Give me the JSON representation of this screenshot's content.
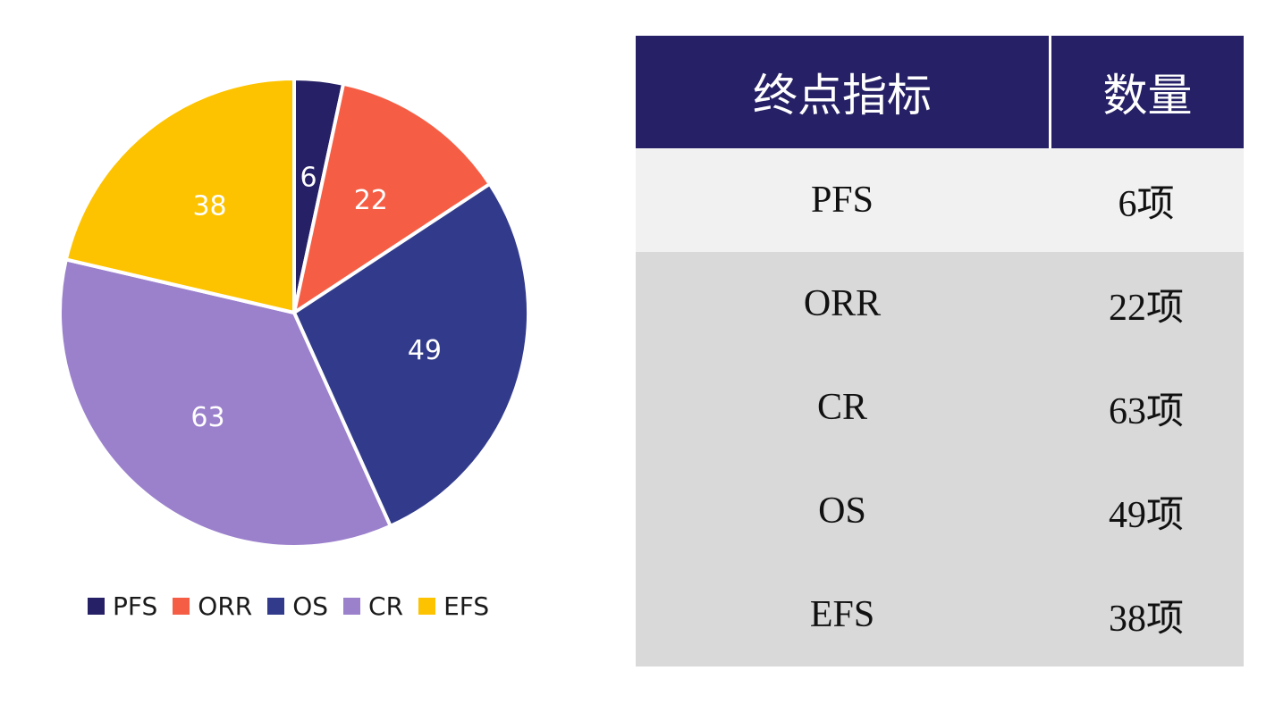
{
  "chart_data": {
    "type": "pie",
    "categories": [
      "PFS",
      "ORR",
      "OS",
      "CR",
      "EFS"
    ],
    "values": [
      6,
      22,
      49,
      63,
      38
    ],
    "colors": [
      "#262166",
      "#f55e45",
      "#323b8b",
      "#9b80cc",
      "#fdc300"
    ],
    "legend_position": "bottom"
  },
  "table": {
    "headers": [
      "终点指标",
      "数量"
    ],
    "rows": [
      {
        "metric": "PFS",
        "count": "6项"
      },
      {
        "metric": "ORR",
        "count": "22项"
      },
      {
        "metric": "CR",
        "count": "63项"
      },
      {
        "metric": "OS",
        "count": "49项"
      },
      {
        "metric": "EFS",
        "count": "38项"
      }
    ]
  }
}
